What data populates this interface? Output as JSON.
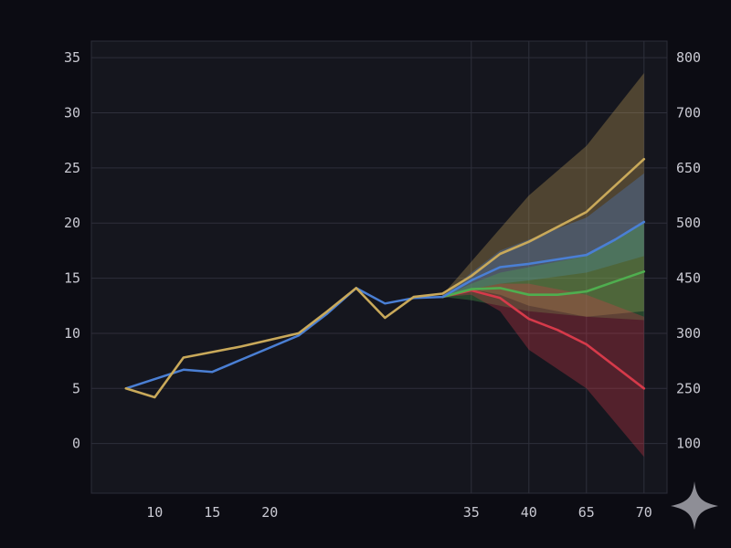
{
  "chart_data": {
    "type": "line",
    "title": "",
    "xlabel": "",
    "ylabel": "",
    "x": [
      9,
      11,
      12,
      13,
      15,
      16,
      17,
      18,
      19,
      20,
      21,
      22,
      23,
      24,
      25,
      26,
      27
    ],
    "x_tick_labels": [
      "10",
      "15",
      "20",
      "35",
      "40",
      "65",
      "70"
    ],
    "y_left_ticks": [
      0,
      5,
      10,
      15,
      20,
      25,
      30,
      35
    ],
    "y_right_tick_labels": [
      "100",
      "250",
      "300",
      "450",
      "500",
      "650",
      "700",
      "800"
    ],
    "ylim": [
      -4.5,
      36.5
    ],
    "grid": true,
    "legend": "none",
    "history": {
      "x": [
        9,
        11,
        12,
        13,
        15,
        16,
        17,
        18,
        19,
        20
      ],
      "values": [
        5.0,
        6.7,
        6.5,
        7.6,
        9.8,
        11.8,
        14.1,
        12.7,
        13.2,
        13.3
      ]
    },
    "series": [
      {
        "color": "#c9a95a",
        "x": [
          9,
          10,
          11,
          13,
          15,
          16,
          17,
          18,
          19,
          20,
          21,
          22,
          23,
          25,
          27
        ],
        "values": [
          5.0,
          4.2,
          7.8,
          8.8,
          10.0,
          12.0,
          14.1,
          11.4,
          13.3,
          13.6,
          15.2,
          17.2,
          18.3,
          21.0,
          25.8
        ],
        "band_x": [
          20,
          21,
          22,
          23,
          25,
          27
        ],
        "band_lower": [
          13.3,
          14.0,
          13.5,
          12.5,
          11.5,
          12.0
        ],
        "band_upper": [
          13.5,
          16.5,
          19.5,
          22.5,
          27.0,
          33.6
        ]
      },
      {
        "color": "#4a7fd4",
        "x": [
          20,
          21,
          22,
          23,
          24,
          25,
          26,
          27
        ],
        "values": [
          13.3,
          14.8,
          16.0,
          16.3,
          16.7,
          17.1,
          18.5,
          20.1
        ],
        "band_x": [
          20,
          21,
          22,
          23,
          25,
          27
        ],
        "band_lower": [
          13.3,
          14.0,
          14.5,
          14.8,
          15.5,
          17.0
        ],
        "band_upper": [
          13.3,
          15.5,
          17.5,
          18.5,
          20.5,
          24.5
        ]
      },
      {
        "color": "#4fae4f",
        "x": [
          20,
          21,
          22,
          23,
          24,
          25,
          26,
          27
        ],
        "values": [
          13.3,
          14.0,
          14.1,
          13.5,
          13.5,
          13.8,
          14.7,
          15.6
        ],
        "band_x": [
          20,
          21,
          22,
          23,
          25,
          27
        ],
        "band_lower": [
          13.3,
          13.0,
          12.5,
          12.0,
          11.5,
          11.2
        ],
        "band_upper": [
          13.3,
          14.5,
          15.5,
          16.0,
          17.0,
          20.0
        ]
      },
      {
        "color": "#d63a4a",
        "x": [
          20,
          21,
          22,
          23,
          24,
          25,
          26,
          27
        ],
        "values": [
          13.3,
          13.9,
          13.2,
          11.3,
          10.3,
          9.0,
          7.0,
          5.0
        ],
        "band_x": [
          20,
          21,
          22,
          23,
          25,
          27
        ],
        "band_lower": [
          13.3,
          13.5,
          12.0,
          8.5,
          5.0,
          -1.2
        ],
        "band_upper": [
          13.3,
          14.0,
          14.5,
          14.5,
          13.5,
          11.5
        ]
      }
    ]
  },
  "icons": {
    "corner": "sparkle-icon"
  }
}
